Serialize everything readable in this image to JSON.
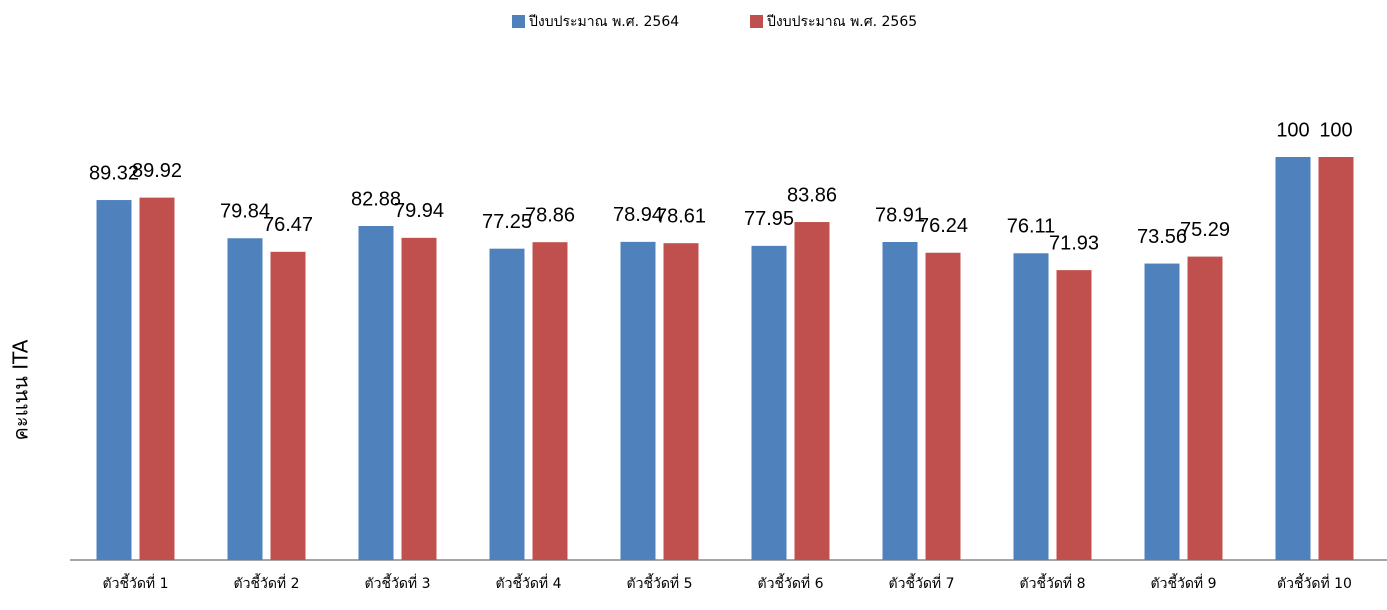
{
  "chart_data": {
    "type": "bar",
    "y_label": "คะแนน ITA",
    "categories": [
      "ตัวชี้วัดที่ 1",
      "ตัวชี้วัดที่ 2",
      "ตัวชี้วัดที่ 3",
      "ตัวชี้วัดที่ 4",
      "ตัวชี้วัดที่ 5",
      "ตัวชี้วัดที่ 6",
      "ตัวชี้วัดที่ 7",
      "ตัวชี้วัดที่ 8",
      "ตัวชี้วัดที่ 9",
      "ตัวชี้วัดที่ 10"
    ],
    "series": [
      {
        "name": "ปีงบประมาณ พ.ศ. 2564",
        "color": "#4f81bd",
        "values": [
          89.32,
          79.84,
          82.88,
          77.25,
          78.94,
          77.95,
          78.91,
          76.11,
          73.56,
          100
        ]
      },
      {
        "name": "ปีงบประมาณ พ.ศ. 2565",
        "color": "#c0504d",
        "values": [
          89.92,
          76.47,
          79.94,
          78.86,
          78.61,
          83.86,
          76.24,
          71.93,
          75.29,
          100
        ]
      }
    ],
    "ylim": [
      0,
      100
    ],
    "legend": "top"
  }
}
